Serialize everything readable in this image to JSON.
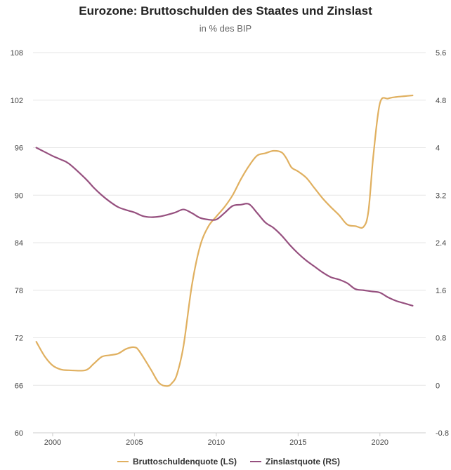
{
  "chart_data": {
    "type": "line",
    "title": "Eurozone: Bruttoschulden des Staates und Zinslast",
    "subtitle": "in % des BIP",
    "x_ticks": [
      "2000",
      "2005",
      "2010",
      "2015",
      "2020"
    ],
    "x_range": [
      1998.8,
      2022.8
    ],
    "y_left": {
      "ticks": [
        "60",
        "66",
        "72",
        "78",
        "84",
        "90",
        "96",
        "102",
        "108"
      ],
      "range": [
        60,
        108
      ]
    },
    "y_right": {
      "ticks": [
        "-0.8",
        "0",
        "0.8",
        "1.6",
        "2.4",
        "3.2",
        "4",
        "4.8",
        "5.6"
      ],
      "range": [
        -0.8,
        5.6
      ]
    },
    "grid": true,
    "legend_position": "bottom",
    "series": [
      {
        "name": "Bruttoschuldenquote (LS)",
        "axis": "left",
        "color": "#e0b060",
        "x": [
          1999,
          1999.5,
          2000,
          2000.5,
          2001,
          2002,
          2002.5,
          2003,
          2003.5,
          2004,
          2004.5,
          2005,
          2005.3,
          2006,
          2006.5,
          2007,
          2007.3,
          2007.6,
          2008,
          2008.5,
          2009,
          2009.5,
          2010,
          2010.5,
          2011,
          2011.5,
          2012,
          2012.5,
          2013,
          2013.5,
          2014,
          2014.3,
          2014.6,
          2015,
          2015.5,
          2016,
          2016.5,
          2017,
          2017.5,
          2018,
          2018.5,
          2019,
          2019.3,
          2019.6,
          2020,
          2020.5,
          2021,
          2021.5,
          2022
        ],
        "values": [
          71.5,
          69.7,
          68.5,
          68.0,
          67.9,
          67.9,
          68.7,
          69.6,
          69.8,
          70.0,
          70.6,
          70.8,
          70.3,
          68.0,
          66.3,
          65.9,
          66.3,
          67.4,
          71.0,
          78.5,
          83.5,
          86.0,
          87.3,
          88.5,
          90.0,
          92.0,
          93.7,
          95.0,
          95.3,
          95.6,
          95.4,
          94.6,
          93.5,
          93.0,
          92.2,
          90.9,
          89.6,
          88.5,
          87.5,
          86.3,
          86.1,
          86.0,
          88.0,
          95.0,
          101.6,
          102.2,
          102.4,
          102.5,
          102.6
        ]
      },
      {
        "name": "Zinslastquote (RS)",
        "axis": "right",
        "color": "#96507f",
        "x": [
          1999,
          1999.5,
          2000,
          2000.5,
          2001,
          2002,
          2002.5,
          2003,
          2003.5,
          2004,
          2004.5,
          2005,
          2005.5,
          2006,
          2006.5,
          2007,
          2007.5,
          2008,
          2008.5,
          2009,
          2009.5,
          2010,
          2010.5,
          2011,
          2011.5,
          2012,
          2012.5,
          2013,
          2013.5,
          2014,
          2014.5,
          2015,
          2015.5,
          2016,
          2016.5,
          2017,
          2017.5,
          2018,
          2018.5,
          2019,
          2019.5,
          2020,
          2020.5,
          2021,
          2021.5,
          2022
        ],
        "values": [
          4.0,
          3.93,
          3.86,
          3.8,
          3.73,
          3.48,
          3.33,
          3.2,
          3.09,
          3.0,
          2.95,
          2.91,
          2.85,
          2.83,
          2.84,
          2.87,
          2.91,
          2.96,
          2.9,
          2.82,
          2.79,
          2.79,
          2.9,
          3.02,
          3.04,
          3.05,
          2.9,
          2.74,
          2.65,
          2.52,
          2.36,
          2.22,
          2.1,
          2.0,
          1.9,
          1.82,
          1.78,
          1.72,
          1.62,
          1.6,
          1.58,
          1.56,
          1.48,
          1.42,
          1.38,
          1.34
        ]
      }
    ]
  }
}
